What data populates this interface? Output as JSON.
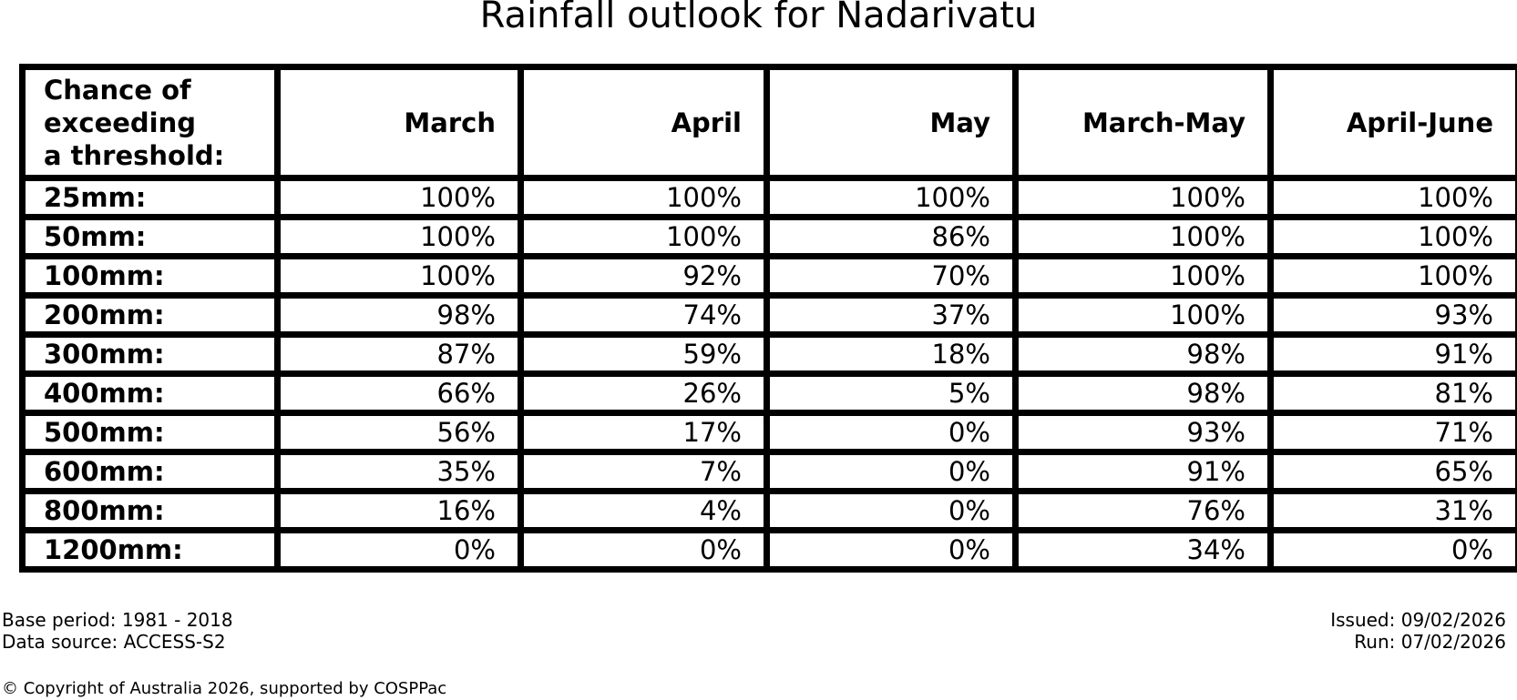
{
  "title": "Rainfall outlook for Nadarivatu",
  "colors": {
    "background": "#ffffff",
    "text": "#000000",
    "border": "#000000"
  },
  "table": {
    "header_col0_lines": [
      "Chance of",
      "exceeding",
      "a threshold:"
    ],
    "month_headers": [
      "March",
      "April",
      "May",
      "March-May",
      "April-June"
    ]
  },
  "chart_data": {
    "type": "table",
    "title": "Rainfall outlook for Nadarivatu",
    "columns": [
      "Chance of exceeding a threshold:",
      "March",
      "April",
      "May",
      "March-May",
      "April-June"
    ],
    "rows": [
      {
        "threshold": "25mm:",
        "values": [
          "100%",
          "100%",
          "100%",
          "100%",
          "100%"
        ]
      },
      {
        "threshold": "50mm:",
        "values": [
          "100%",
          "100%",
          "86%",
          "100%",
          "100%"
        ]
      },
      {
        "threshold": "100mm:",
        "values": [
          "100%",
          "92%",
          "70%",
          "100%",
          "100%"
        ]
      },
      {
        "threshold": "200mm:",
        "values": [
          "98%",
          "74%",
          "37%",
          "100%",
          "93%"
        ]
      },
      {
        "threshold": "300mm:",
        "values": [
          "87%",
          "59%",
          "18%",
          "98%",
          "91%"
        ]
      },
      {
        "threshold": "400mm:",
        "values": [
          "66%",
          "26%",
          "5%",
          "98%",
          "81%"
        ]
      },
      {
        "threshold": "500mm:",
        "values": [
          "56%",
          "17%",
          "0%",
          "93%",
          "71%"
        ]
      },
      {
        "threshold": "600mm:",
        "values": [
          "35%",
          "7%",
          "0%",
          "91%",
          "65%"
        ]
      },
      {
        "threshold": "800mm:",
        "values": [
          "16%",
          "4%",
          "0%",
          "76%",
          "31%"
        ]
      },
      {
        "threshold": "1200mm:",
        "values": [
          "0%",
          "0%",
          "0%",
          "34%",
          "0%"
        ]
      }
    ]
  },
  "footer": {
    "base_period": "Base period: 1981 - 2018",
    "data_source": "Data source: ACCESS-S2",
    "issued": "Issued: 09/02/2026",
    "run": "Run: 07/02/2026",
    "copyright": "© Copyright of Australia 2026, supported by COSPPac"
  }
}
